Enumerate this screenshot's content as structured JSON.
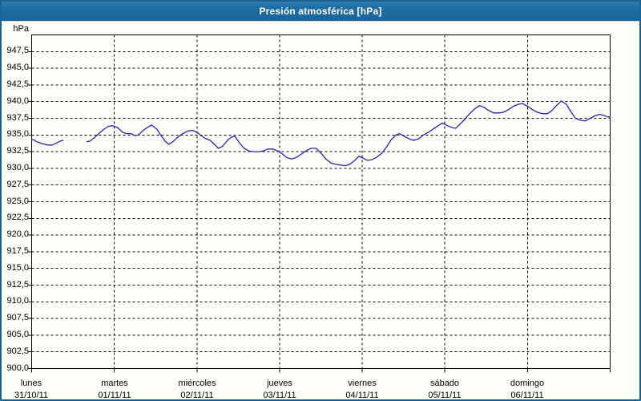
{
  "window": {
    "title": "Presión atmosférica [hPa]"
  },
  "colors": {
    "titlebar_blue": "#1e6da5",
    "window_border": "#1c6392",
    "grid": "#000000",
    "line": "#2424bb",
    "background": "#fdfdfa",
    "text": "#000000"
  },
  "chart_data": {
    "type": "line",
    "title": "Presión atmosférica [hPa]",
    "unit_label": "hPa",
    "ylabel": "hPa",
    "xlabel": "",
    "ylim": [
      900,
      950
    ],
    "y_tick_step": 2.5,
    "grid": "dashed",
    "legend": "none",
    "x_range_days": [
      0,
      7
    ],
    "y_ticks": [
      {
        "v": 947.5,
        "label": "947,5"
      },
      {
        "v": 945.0,
        "label": "945,0"
      },
      {
        "v": 942.5,
        "label": "942,5"
      },
      {
        "v": 940.0,
        "label": "940,0"
      },
      {
        "v": 937.5,
        "label": "937,5"
      },
      {
        "v": 935.0,
        "label": "935,0"
      },
      {
        "v": 932.5,
        "label": "932,5"
      },
      {
        "v": 930.0,
        "label": "930,0"
      },
      {
        "v": 927.5,
        "label": "927,5"
      },
      {
        "v": 925.0,
        "label": "925,0"
      },
      {
        "v": 922.5,
        "label": "922,5"
      },
      {
        "v": 920.0,
        "label": "920,0"
      },
      {
        "v": 917.5,
        "label": "917,5"
      },
      {
        "v": 915.0,
        "label": "915,0"
      },
      {
        "v": 912.5,
        "label": "912,5"
      },
      {
        "v": 910.0,
        "label": "910,0"
      },
      {
        "v": 907.5,
        "label": "907,5"
      },
      {
        "v": 905.0,
        "label": "905,0"
      },
      {
        "v": 902.5,
        "label": "902,5"
      },
      {
        "v": 900.0,
        "label": "900,0"
      }
    ],
    "x_ticks": [
      {
        "day": "lunes",
        "date": "31/10/11"
      },
      {
        "day": "martes",
        "date": "01/11/11"
      },
      {
        "day": "miércoles",
        "date": "02/11/11"
      },
      {
        "day": "jueves",
        "date": "03/11/11"
      },
      {
        "day": "viernes",
        "date": "04/11/11"
      },
      {
        "day": "sábado",
        "date": "05/11/11"
      },
      {
        "day": "domingo",
        "date": "06/11/11"
      }
    ],
    "series": [
      {
        "name": "Presión atmosférica",
        "units": "hPa",
        "x_units": "days since 31/10/11 00:00",
        "segments": [
          [
            [
              0.0,
              934.4
            ],
            [
              0.06,
              934.0
            ],
            [
              0.13,
              933.7
            ],
            [
              0.19,
              933.5
            ],
            [
              0.25,
              933.5
            ],
            [
              0.3,
              933.8
            ],
            [
              0.35,
              934.1
            ],
            [
              0.38,
              934.2
            ]
          ],
          [
            [
              0.67,
              934.0
            ],
            [
              0.71,
              934.1
            ],
            [
              0.77,
              934.7
            ],
            [
              0.82,
              935.3
            ],
            [
              0.88,
              935.9
            ],
            [
              0.93,
              936.3
            ],
            [
              0.98,
              936.4
            ],
            [
              1.04,
              936.1
            ],
            [
              1.1,
              935.4
            ],
            [
              1.15,
              935.2
            ],
            [
              1.2,
              935.2
            ],
            [
              1.25,
              934.9
            ],
            [
              1.29,
              935.0
            ],
            [
              1.35,
              935.7
            ],
            [
              1.41,
              936.2
            ],
            [
              1.45,
              936.5
            ],
            [
              1.47,
              936.3
            ],
            [
              1.52,
              935.8
            ],
            [
              1.56,
              935.0
            ],
            [
              1.62,
              934.0
            ],
            [
              1.66,
              933.6
            ],
            [
              1.72,
              934.1
            ],
            [
              1.77,
              934.7
            ],
            [
              1.83,
              935.2
            ],
            [
              1.89,
              935.6
            ],
            [
              1.95,
              935.7
            ],
            [
              2.01,
              935.3
            ],
            [
              2.05,
              934.9
            ],
            [
              2.1,
              934.5
            ],
            [
              2.16,
              934.2
            ],
            [
              2.21,
              933.6
            ],
            [
              2.26,
              933.0
            ],
            [
              2.31,
              933.3
            ],
            [
              2.37,
              934.2
            ],
            [
              2.42,
              934.7
            ],
            [
              2.46,
              934.8
            ],
            [
              2.51,
              933.9
            ],
            [
              2.57,
              933.0
            ],
            [
              2.63,
              932.6
            ],
            [
              2.69,
              932.5
            ],
            [
              2.75,
              932.5
            ],
            [
              2.8,
              932.6
            ],
            [
              2.86,
              932.9
            ],
            [
              2.92,
              932.9
            ],
            [
              2.98,
              932.6
            ],
            [
              3.03,
              932.2
            ],
            [
              3.09,
              931.6
            ],
            [
              3.15,
              931.4
            ],
            [
              3.21,
              931.7
            ],
            [
              3.27,
              932.2
            ],
            [
              3.33,
              932.7
            ],
            [
              3.38,
              933.0
            ],
            [
              3.44,
              933.0
            ],
            [
              3.5,
              932.3
            ],
            [
              3.56,
              931.4
            ],
            [
              3.62,
              930.8
            ],
            [
              3.68,
              930.6
            ],
            [
              3.73,
              930.5
            ],
            [
              3.79,
              930.4
            ],
            [
              3.85,
              930.6
            ],
            [
              3.91,
              931.2
            ],
            [
              3.96,
              931.8
            ],
            [
              4.0,
              931.6
            ],
            [
              4.06,
              931.2
            ],
            [
              4.12,
              931.3
            ],
            [
              4.18,
              931.7
            ],
            [
              4.24,
              932.3
            ],
            [
              4.3,
              933.3
            ],
            [
              4.35,
              934.3
            ],
            [
              4.41,
              935.0
            ],
            [
              4.45,
              935.2
            ],
            [
              4.51,
              934.8
            ],
            [
              4.57,
              934.4
            ],
            [
              4.62,
              934.2
            ],
            [
              4.68,
              934.4
            ],
            [
              4.74,
              935.0
            ],
            [
              4.8,
              935.4
            ],
            [
              4.86,
              935.9
            ],
            [
              4.92,
              936.4
            ],
            [
              4.97,
              936.8
            ],
            [
              5.03,
              936.4
            ],
            [
              5.09,
              936.1
            ],
            [
              5.13,
              936.0
            ],
            [
              5.19,
              936.7
            ],
            [
              5.25,
              937.5
            ],
            [
              5.3,
              938.2
            ],
            [
              5.36,
              938.9
            ],
            [
              5.42,
              939.4
            ],
            [
              5.48,
              939.1
            ],
            [
              5.54,
              938.6
            ],
            [
              5.59,
              938.3
            ],
            [
              5.65,
              938.3
            ],
            [
              5.71,
              938.4
            ],
            [
              5.77,
              938.8
            ],
            [
              5.83,
              939.3
            ],
            [
              5.89,
              939.6
            ],
            [
              5.94,
              939.7
            ],
            [
              6.0,
              939.3
            ],
            [
              6.06,
              938.8
            ],
            [
              6.12,
              938.4
            ],
            [
              6.18,
              938.2
            ],
            [
              6.24,
              938.2
            ],
            [
              6.29,
              938.6
            ],
            [
              6.35,
              939.4
            ],
            [
              6.41,
              940.1
            ],
            [
              6.47,
              939.6
            ],
            [
              6.53,
              938.4
            ],
            [
              6.58,
              937.5
            ],
            [
              6.64,
              937.2
            ],
            [
              6.7,
              937.1
            ],
            [
              6.76,
              937.5
            ],
            [
              6.82,
              937.9
            ],
            [
              6.87,
              938.1
            ],
            [
              6.93,
              937.9
            ],
            [
              6.97,
              937.7
            ],
            [
              7.0,
              937.7
            ]
          ]
        ]
      }
    ]
  }
}
